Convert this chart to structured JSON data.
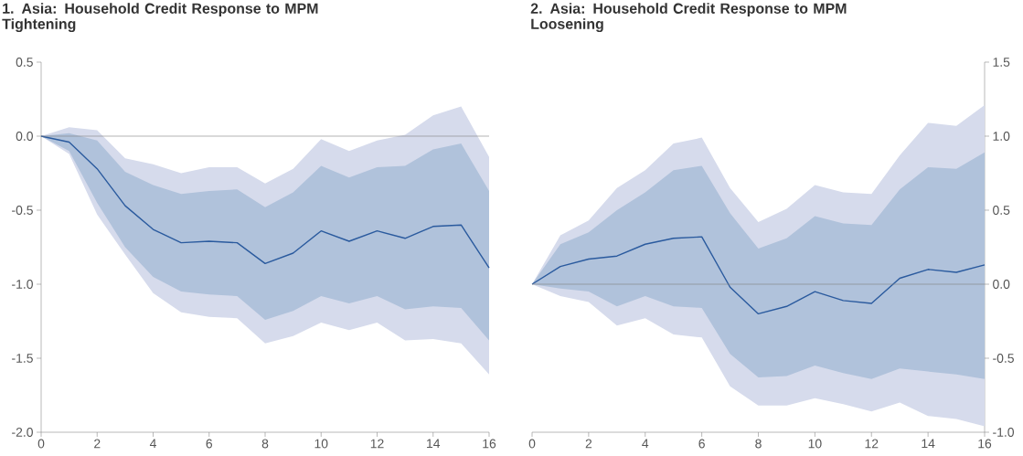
{
  "chart_data": [
    {
      "type": "line",
      "title": "1. Asia: Household Credit Response to MPM Tightening",
      "x": [
        0,
        1,
        2,
        3,
        4,
        5,
        6,
        7,
        8,
        9,
        10,
        11,
        12,
        13,
        14,
        15,
        16
      ],
      "xlim": [
        0,
        16
      ],
      "xticks": [
        0,
        2,
        4,
        6,
        8,
        10,
        12,
        14,
        16
      ],
      "ylim": [
        -2.0,
        0.5
      ],
      "yticks": [
        {
          "value": -2.0,
          "label": "-2.0"
        },
        {
          "value": -1.5,
          "label": "-1.5"
        },
        {
          "value": -1.0,
          "label": "-1.0"
        },
        {
          "value": -0.5,
          "label": "-0.5"
        },
        {
          "value": 0.0,
          "label": "0.0"
        },
        {
          "value": 0.5,
          "label": "0.5"
        }
      ],
      "ref_lines": [
        {
          "axis": "y",
          "value": 0,
          "color": "#7f7f7f"
        }
      ],
      "series": [
        {
          "color": "#d6dbec",
          "values": [
            null,
            null,
            null,
            null,
            null,
            null,
            null,
            null,
            null,
            null,
            null,
            null,
            null,
            null,
            null,
            null,
            null
          ],
          "upper": [
            0,
            0.06,
            0.04,
            -0.15,
            -0.19,
            -0.25,
            -0.21,
            -0.21,
            -0.32,
            -0.22,
            -0.02,
            -0.1,
            -0.03,
            0.01,
            0.14,
            0.2,
            -0.14
          ],
          "lower": [
            0,
            -0.12,
            -0.53,
            -0.8,
            -1.06,
            -1.19,
            -1.22,
            -1.23,
            -1.4,
            -1.35,
            -1.26,
            -1.31,
            -1.26,
            -1.38,
            -1.37,
            -1.4,
            -1.61
          ]
        },
        {
          "color": "#2a5a9e",
          "values": [
            0,
            -0.04,
            -0.22,
            -0.47,
            -0.63,
            -0.72,
            -0.71,
            -0.72,
            -0.86,
            -0.79,
            -0.64,
            -0.71,
            -0.64,
            -0.69,
            -0.61,
            -0.6,
            -0.89
          ],
          "upper": [
            0,
            0.02,
            -0.03,
            -0.24,
            -0.33,
            -0.39,
            -0.37,
            -0.36,
            -0.48,
            -0.38,
            -0.2,
            -0.28,
            -0.21,
            -0.2,
            -0.09,
            -0.05,
            -0.37
          ],
          "lower": [
            0,
            -0.1,
            -0.45,
            -0.75,
            -0.95,
            -1.05,
            -1.07,
            -1.08,
            -1.24,
            -1.18,
            -1.08,
            -1.13,
            -1.08,
            -1.17,
            -1.15,
            -1.16,
            -1.38
          ]
        }
      ]
    },
    {
      "type": "line",
      "title": "2. Asia: Household Credit Response to MPM Loosening",
      "x": [
        0,
        1,
        2,
        3,
        4,
        5,
        6,
        7,
        8,
        9,
        10,
        11,
        12,
        13,
        14,
        15,
        16
      ],
      "xlim": [
        0,
        16
      ],
      "xticks": [
        0,
        2,
        4,
        6,
        8,
        10,
        12,
        14,
        16
      ],
      "y2lim": [
        -1.0,
        1.5
      ],
      "y2ticks": [
        {
          "value": -1.0,
          "label": "-1.0"
        },
        {
          "value": -0.5,
          "label": "-0.5"
        },
        {
          "value": 0.0,
          "label": "0.0"
        },
        {
          "value": 0.5,
          "label": "0.5"
        },
        {
          "value": 1.0,
          "label": "1.0"
        },
        {
          "value": 1.5,
          "label": "1.5"
        }
      ],
      "ref_lines": [
        {
          "axis": "y2",
          "value": 0,
          "color": "#7f7f7f"
        }
      ],
      "series": [
        {
          "axis": "y2",
          "color": "#d6dbec",
          "values": [
            null,
            null,
            null,
            null,
            null,
            null,
            null,
            null,
            null,
            null,
            null,
            null,
            null,
            null,
            null,
            null,
            null
          ],
          "upper": [
            0,
            0.33,
            0.43,
            0.65,
            0.77,
            0.95,
            0.99,
            0.65,
            0.42,
            0.51,
            0.67,
            0.62,
            0.61,
            0.87,
            1.09,
            1.07,
            1.21
          ],
          "lower": [
            0,
            -0.08,
            -0.12,
            -0.28,
            -0.23,
            -0.34,
            -0.36,
            -0.69,
            -0.82,
            -0.82,
            -0.77,
            -0.81,
            -0.86,
            -0.8,
            -0.89,
            -0.91,
            -0.96
          ]
        },
        {
          "axis": "y2",
          "color": "#2a5a9e",
          "values": [
            0,
            0.12,
            0.17,
            0.19,
            0.27,
            0.31,
            0.32,
            -0.02,
            -0.2,
            -0.15,
            -0.05,
            -0.11,
            -0.13,
            0.04,
            0.1,
            0.08,
            0.13
          ],
          "upper": [
            0,
            0.27,
            0.35,
            0.5,
            0.62,
            0.77,
            0.8,
            0.48,
            0.24,
            0.31,
            0.46,
            0.41,
            0.4,
            0.64,
            0.79,
            0.78,
            0.89
          ],
          "lower": [
            0,
            -0.03,
            -0.05,
            -0.15,
            -0.08,
            -0.15,
            -0.16,
            -0.47,
            -0.63,
            -0.62,
            -0.55,
            -0.6,
            -0.64,
            -0.57,
            -0.59,
            -0.61,
            -0.64
          ]
        }
      ]
    }
  ]
}
